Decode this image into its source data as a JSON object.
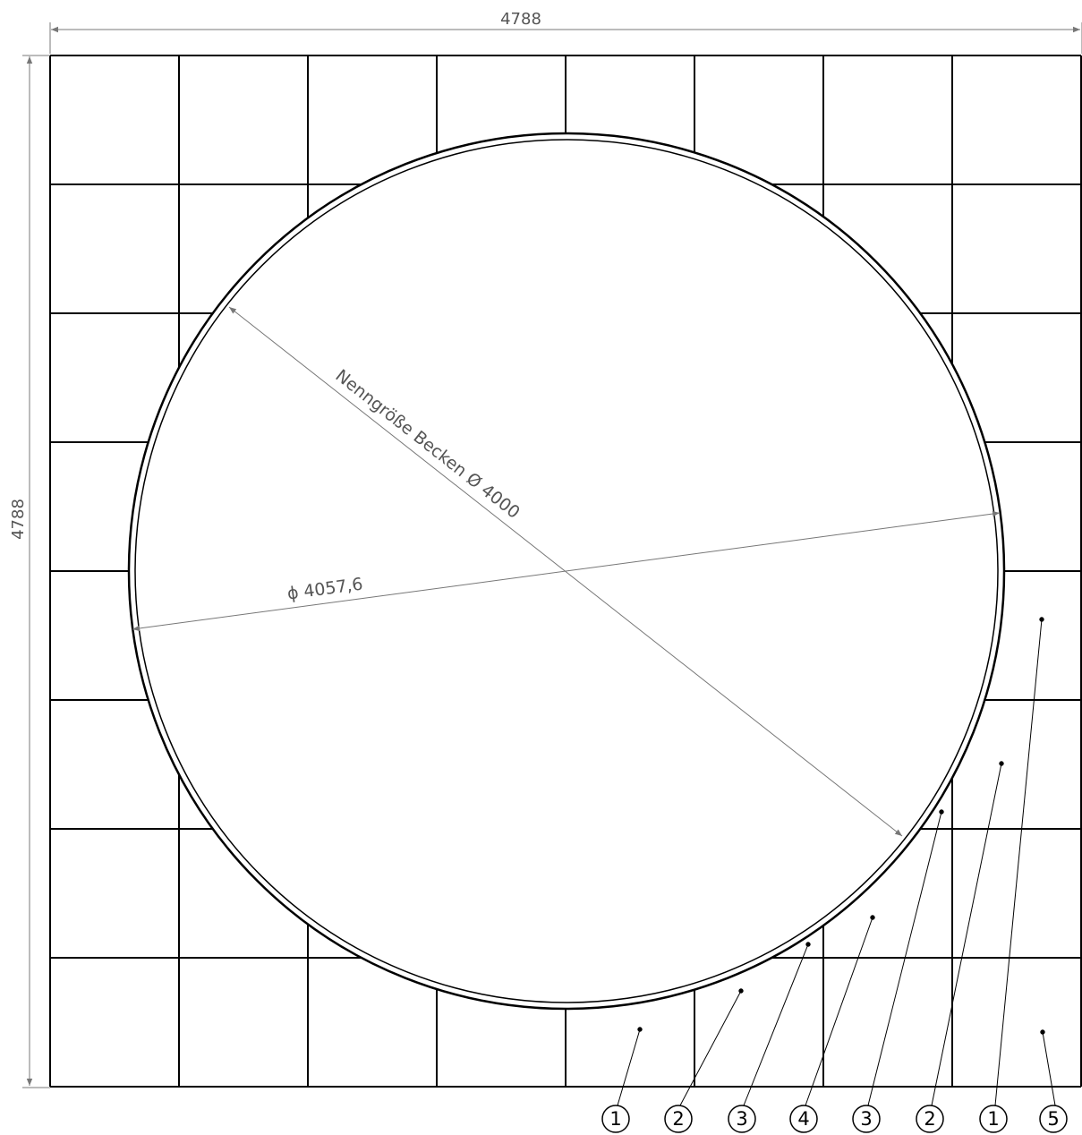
{
  "drawing": {
    "dims": {
      "width_label": "4788",
      "height_label": "4788",
      "nominal_label": "Nenngröße Becken Ø 4000",
      "outer_diameter_label": "ϕ 4057,6"
    },
    "callouts": [
      {
        "label": "1"
      },
      {
        "label": "2"
      },
      {
        "label": "3"
      },
      {
        "label": "4"
      },
      {
        "label": "3"
      },
      {
        "label": "2"
      },
      {
        "label": "1"
      },
      {
        "label": "5"
      }
    ],
    "colors": {
      "line": "#000000",
      "dimension": "#777777"
    }
  }
}
